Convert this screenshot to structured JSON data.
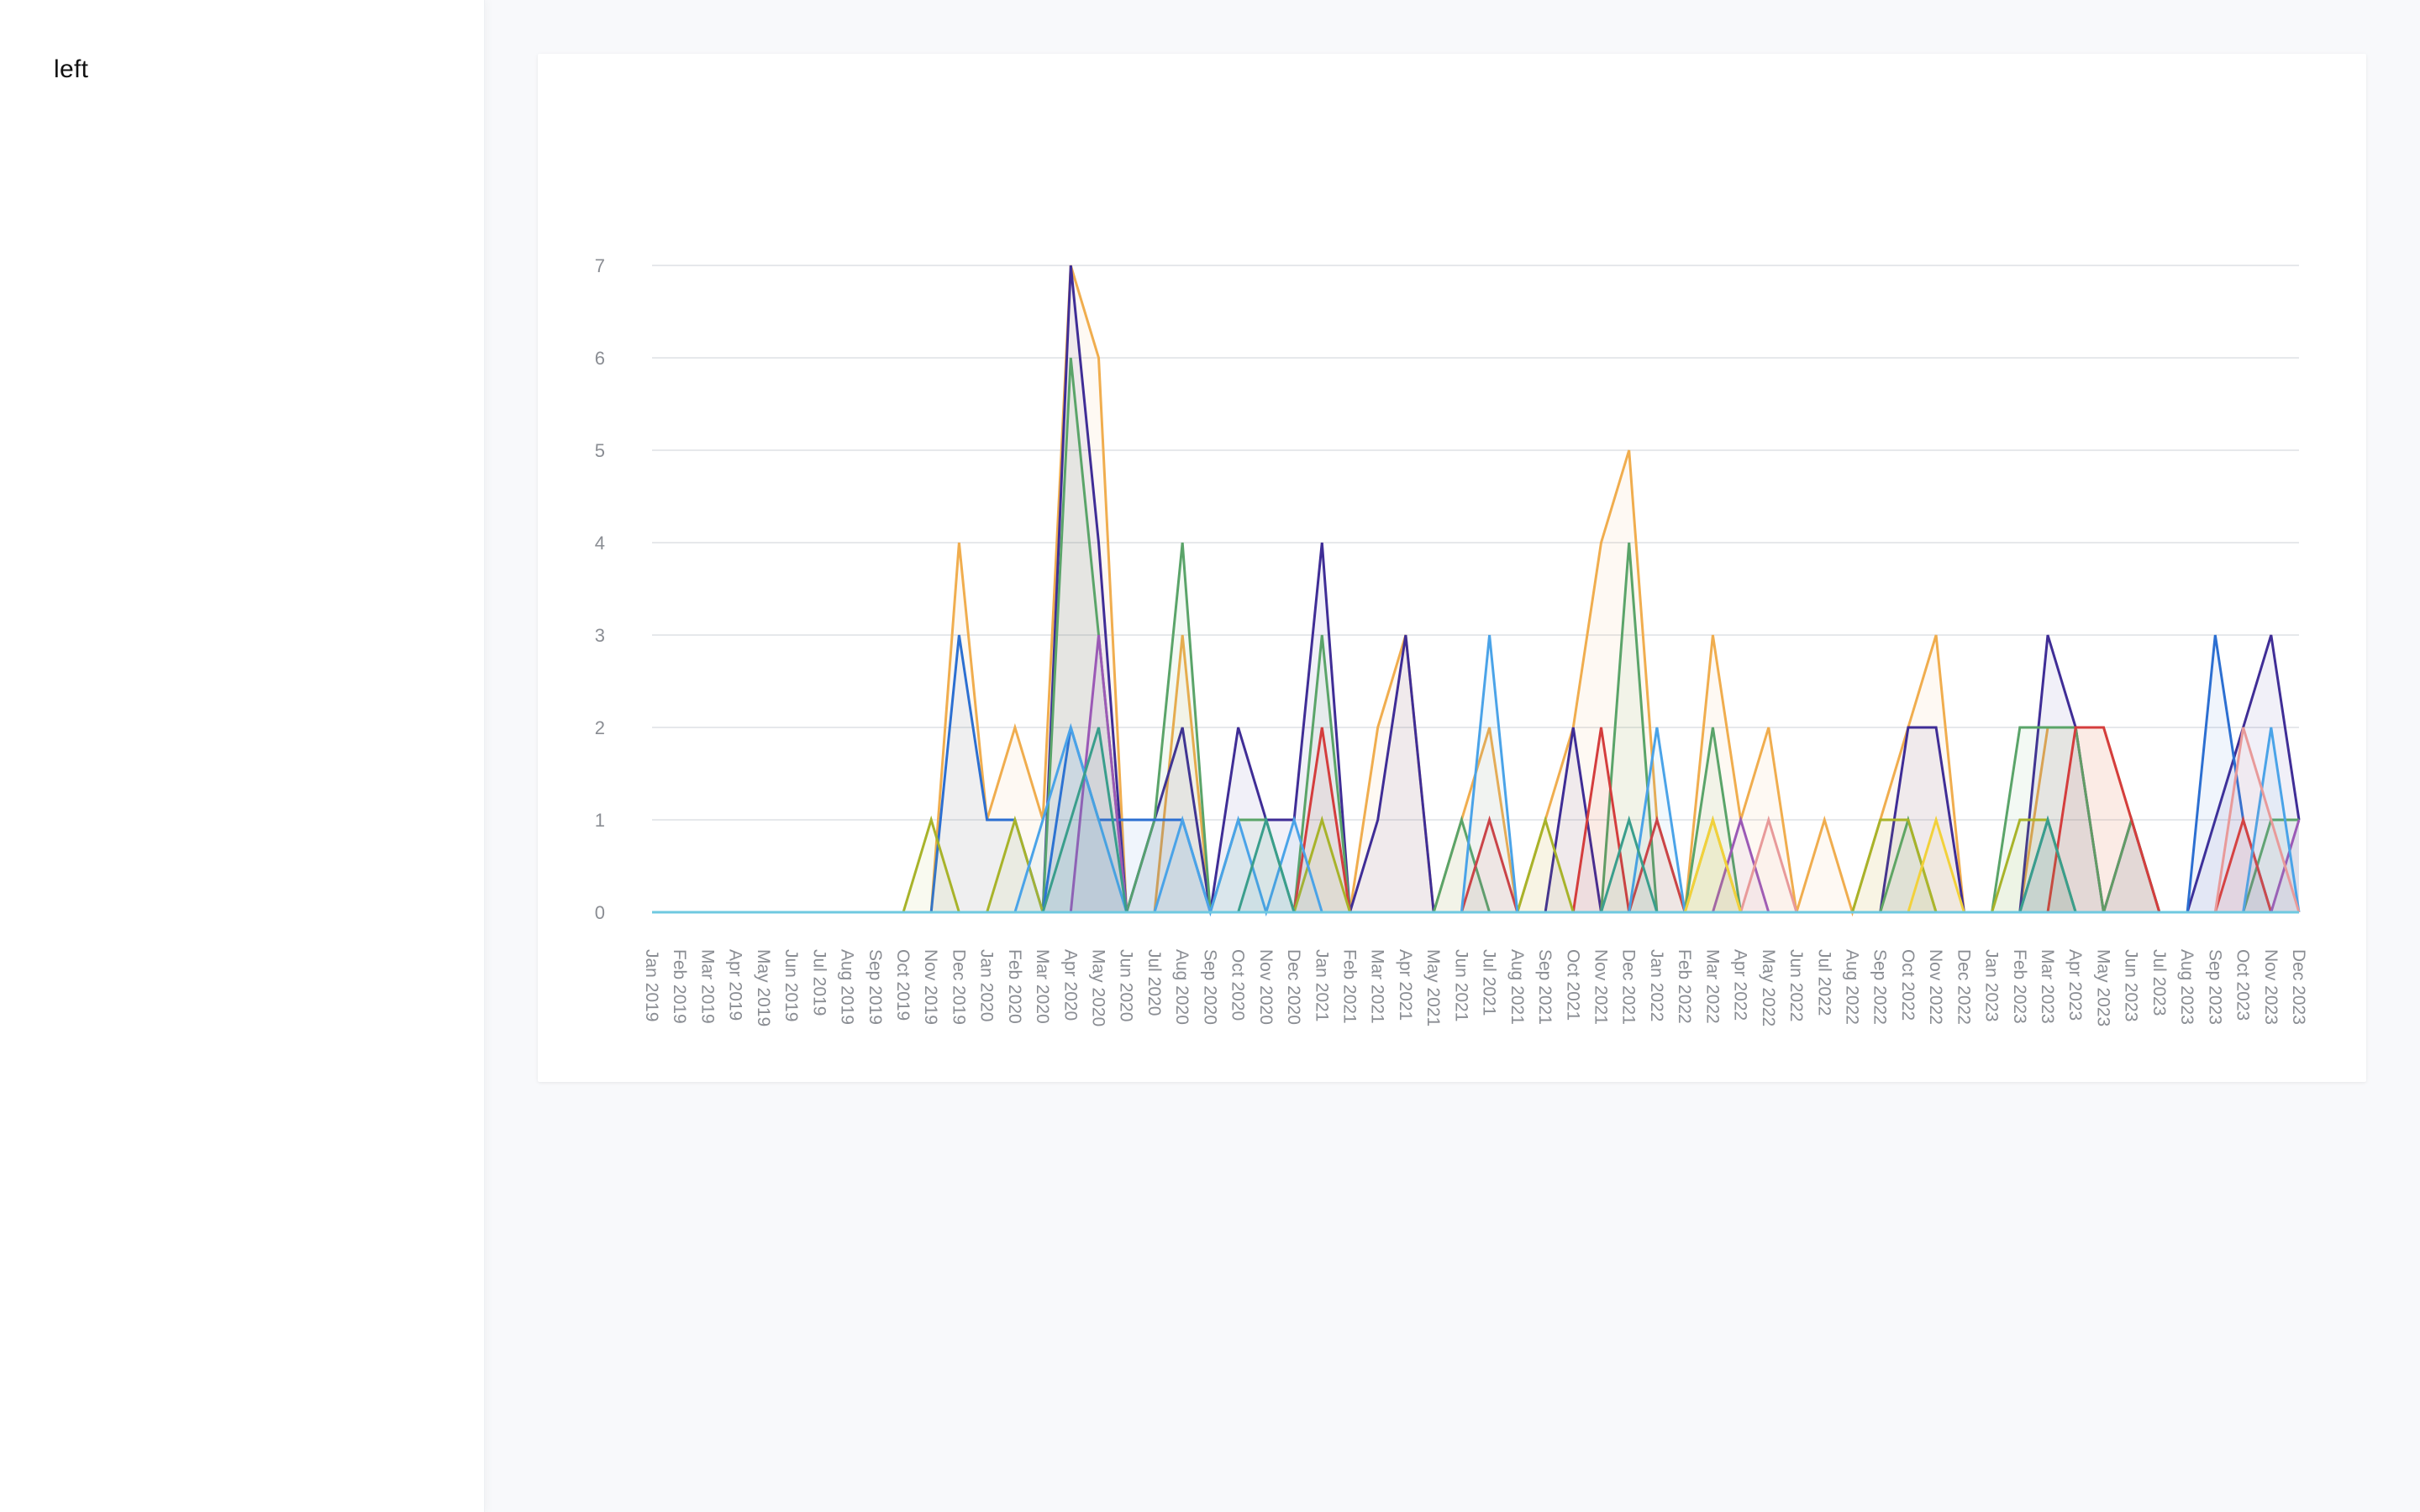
{
  "sidebar": {
    "label": "left"
  },
  "chart_data": {
    "type": "area",
    "title": "",
    "xlabel": "",
    "ylabel": "",
    "ylim": [
      0,
      7
    ],
    "y_ticks": [
      "0",
      "1",
      "2",
      "3",
      "4",
      "5",
      "6",
      "7"
    ],
    "grid": "horizontal",
    "legend": "none",
    "categories": [
      "Jan 2019",
      "Feb 2019",
      "Mar 2019",
      "Apr 2019",
      "May 2019",
      "Jun 2019",
      "Jul 2019",
      "Aug 2019",
      "Sep 2019",
      "Oct 2019",
      "Nov 2019",
      "Dec 2019",
      "Jan 2020",
      "Feb 2020",
      "Mar 2020",
      "Apr 2020",
      "May 2020",
      "Jun 2020",
      "Jul 2020",
      "Aug 2020",
      "Sep 2020",
      "Oct 2020",
      "Nov 2020",
      "Dec 2020",
      "Jan 2021",
      "Feb 2021",
      "Mar 2021",
      "Apr 2021",
      "May 2021",
      "Jun 2021",
      "Jul 2021",
      "Aug 2021",
      "Sep 2021",
      "Oct 2021",
      "Nov 2021",
      "Dec 2021",
      "Jan 2022",
      "Feb 2022",
      "Mar 2022",
      "Apr 2022",
      "May 2022",
      "Jun 2022",
      "Jul 2022",
      "Aug 2022",
      "Sep 2022",
      "Oct 2022",
      "Nov 2022",
      "Dec 2022",
      "Jan 2023",
      "Feb 2023",
      "Mar 2023",
      "Apr 2023",
      "May 2023",
      "Jun 2023",
      "Jul 2023",
      "Aug 2023",
      "Sep 2023",
      "Oct 2023",
      "Nov 2023",
      "Dec 2023"
    ],
    "series": [
      {
        "color": "#f0ad4e",
        "values": [
          0,
          0,
          0,
          0,
          0,
          0,
          0,
          0,
          0,
          0,
          0,
          4,
          1,
          2,
          1,
          7,
          6,
          0,
          0,
          3,
          0,
          0,
          0,
          0,
          0,
          0,
          2,
          3,
          0,
          1,
          2,
          0,
          1,
          2,
          4,
          5,
          1,
          0,
          3,
          1,
          2,
          0,
          1,
          0,
          1,
          2,
          3,
          0,
          0,
          0,
          2,
          2,
          2,
          1,
          0,
          0,
          0,
          0,
          0,
          0
        ]
      },
      {
        "color": "#3f2d96",
        "values": [
          0,
          0,
          0,
          0,
          0,
          0,
          0,
          0,
          0,
          0,
          0,
          0,
          0,
          0,
          0,
          7,
          4,
          0,
          1,
          2,
          0,
          2,
          1,
          1,
          4,
          0,
          1,
          3,
          0,
          0,
          0,
          0,
          0,
          2,
          0,
          0,
          0,
          0,
          0,
          0,
          0,
          0,
          0,
          0,
          0,
          2,
          2,
          0,
          0,
          0,
          3,
          2,
          0,
          1,
          0,
          0,
          1,
          2,
          3,
          1
        ]
      },
      {
        "color": "#5aa469",
        "values": [
          0,
          0,
          0,
          0,
          0,
          0,
          0,
          0,
          0,
          0,
          0,
          0,
          0,
          0,
          0,
          6,
          3,
          0,
          1,
          4,
          0,
          1,
          1,
          0,
          3,
          0,
          0,
          0,
          0,
          1,
          0,
          0,
          0,
          0,
          0,
          4,
          0,
          0,
          2,
          0,
          0,
          0,
          0,
          0,
          0,
          1,
          0,
          0,
          0,
          2,
          2,
          2,
          0,
          1,
          0,
          0,
          0,
          0,
          1,
          1
        ]
      },
      {
        "color": "#2c6fd1",
        "values": [
          0,
          0,
          0,
          0,
          0,
          0,
          0,
          0,
          0,
          0,
          0,
          3,
          1,
          1,
          0,
          2,
          1,
          1,
          1,
          1,
          0,
          0,
          0,
          0,
          0,
          0,
          0,
          0,
          0,
          0,
          0,
          0,
          0,
          0,
          0,
          0,
          0,
          0,
          0,
          0,
          0,
          0,
          0,
          0,
          0,
          0,
          0,
          0,
          0,
          0,
          1,
          0,
          0,
          0,
          0,
          0,
          3,
          1,
          0,
          0
        ]
      },
      {
        "color": "#d43d3d",
        "values": [
          0,
          0,
          0,
          0,
          0,
          0,
          0,
          0,
          0,
          0,
          0,
          0,
          0,
          0,
          0,
          0,
          0,
          0,
          0,
          0,
          0,
          0,
          0,
          0,
          2,
          0,
          0,
          0,
          0,
          0,
          1,
          0,
          0,
          0,
          2,
          0,
          1,
          0,
          0,
          0,
          0,
          0,
          0,
          0,
          0,
          0,
          0,
          0,
          0,
          0,
          0,
          2,
          2,
          1,
          0,
          0,
          0,
          1,
          0,
          0
        ]
      },
      {
        "color": "#9b59b6",
        "values": [
          0,
          0,
          0,
          0,
          0,
          0,
          0,
          0,
          0,
          0,
          0,
          0,
          0,
          0,
          0,
          0,
          3,
          0,
          0,
          0,
          0,
          0,
          0,
          0,
          0,
          0,
          0,
          0,
          0,
          0,
          0,
          0,
          0,
          0,
          0,
          0,
          0,
          0,
          0,
          1,
          0,
          0,
          0,
          0,
          0,
          0,
          0,
          0,
          0,
          0,
          0,
          0,
          0,
          0,
          0,
          0,
          0,
          0,
          0,
          1
        ]
      },
      {
        "color": "#a8b32a",
        "values": [
          0,
          0,
          0,
          0,
          0,
          0,
          0,
          0,
          0,
          0,
          1,
          0,
          0,
          1,
          0,
          0,
          0,
          0,
          0,
          0,
          0,
          0,
          0,
          0,
          1,
          0,
          0,
          0,
          0,
          0,
          0,
          0,
          1,
          0,
          0,
          0,
          0,
          0,
          1,
          0,
          0,
          0,
          0,
          0,
          1,
          1,
          0,
          0,
          0,
          1,
          1,
          0,
          0,
          0,
          0,
          0,
          0,
          0,
          0,
          0
        ]
      },
      {
        "color": "#4aa3e8",
        "values": [
          0,
          0,
          0,
          0,
          0,
          0,
          0,
          0,
          0,
          0,
          0,
          0,
          0,
          0,
          1,
          2,
          1,
          0,
          0,
          1,
          0,
          1,
          0,
          1,
          0,
          0,
          0,
          0,
          0,
          0,
          3,
          0,
          0,
          0,
          0,
          0,
          2,
          0,
          0,
          0,
          0,
          0,
          0,
          0,
          0,
          0,
          0,
          0,
          0,
          0,
          0,
          0,
          0,
          0,
          0,
          0,
          0,
          0,
          2,
          0
        ]
      },
      {
        "color": "#3a9e8c",
        "values": [
          0,
          0,
          0,
          0,
          0,
          0,
          0,
          0,
          0,
          0,
          0,
          0,
          0,
          0,
          0,
          1,
          2,
          0,
          0,
          0,
          0,
          0,
          1,
          0,
          0,
          0,
          0,
          0,
          0,
          0,
          0,
          0,
          0,
          0,
          0,
          1,
          0,
          0,
          0,
          0,
          0,
          0,
          0,
          0,
          0,
          0,
          0,
          0,
          0,
          0,
          1,
          0,
          0,
          0,
          0,
          0,
          0,
          0,
          0,
          0
        ]
      },
      {
        "color": "#e89a9a",
        "values": [
          0,
          0,
          0,
          0,
          0,
          0,
          0,
          0,
          0,
          0,
          0,
          0,
          0,
          0,
          0,
          0,
          0,
          0,
          0,
          0,
          0,
          0,
          0,
          0,
          0,
          0,
          0,
          0,
          0,
          0,
          0,
          0,
          0,
          0,
          0,
          0,
          0,
          0,
          0,
          0,
          1,
          0,
          0,
          0,
          0,
          0,
          0,
          0,
          0,
          0,
          0,
          0,
          0,
          0,
          0,
          0,
          0,
          2,
          1,
          0
        ]
      },
      {
        "color": "#f2d13b",
        "values": [
          0,
          0,
          0,
          0,
          0,
          0,
          0,
          0,
          0,
          0,
          0,
          0,
          0,
          0,
          0,
          0,
          0,
          0,
          0,
          0,
          0,
          0,
          0,
          0,
          0,
          0,
          0,
          0,
          0,
          0,
          0,
          0,
          0,
          0,
          0,
          0,
          0,
          0,
          1,
          0,
          0,
          0,
          0,
          0,
          0,
          0,
          1,
          0,
          0,
          0,
          0,
          0,
          0,
          0,
          0,
          0,
          0,
          0,
          0,
          0
        ]
      },
      {
        "color": "#6fc9e0",
        "values": [
          0,
          0,
          0,
          0,
          0,
          0,
          0,
          0,
          0,
          0,
          0,
          0,
          0,
          0,
          0,
          0,
          0,
          0,
          0,
          0,
          0,
          0,
          0,
          0,
          0,
          0,
          0,
          0,
          0,
          0,
          0,
          0,
          0,
          0,
          0,
          0,
          0,
          0,
          0,
          0,
          0,
          0,
          0,
          0,
          0,
          0,
          0,
          0,
          0,
          0,
          0,
          0,
          0,
          0,
          0,
          0,
          0,
          0,
          0,
          0
        ]
      }
    ]
  }
}
